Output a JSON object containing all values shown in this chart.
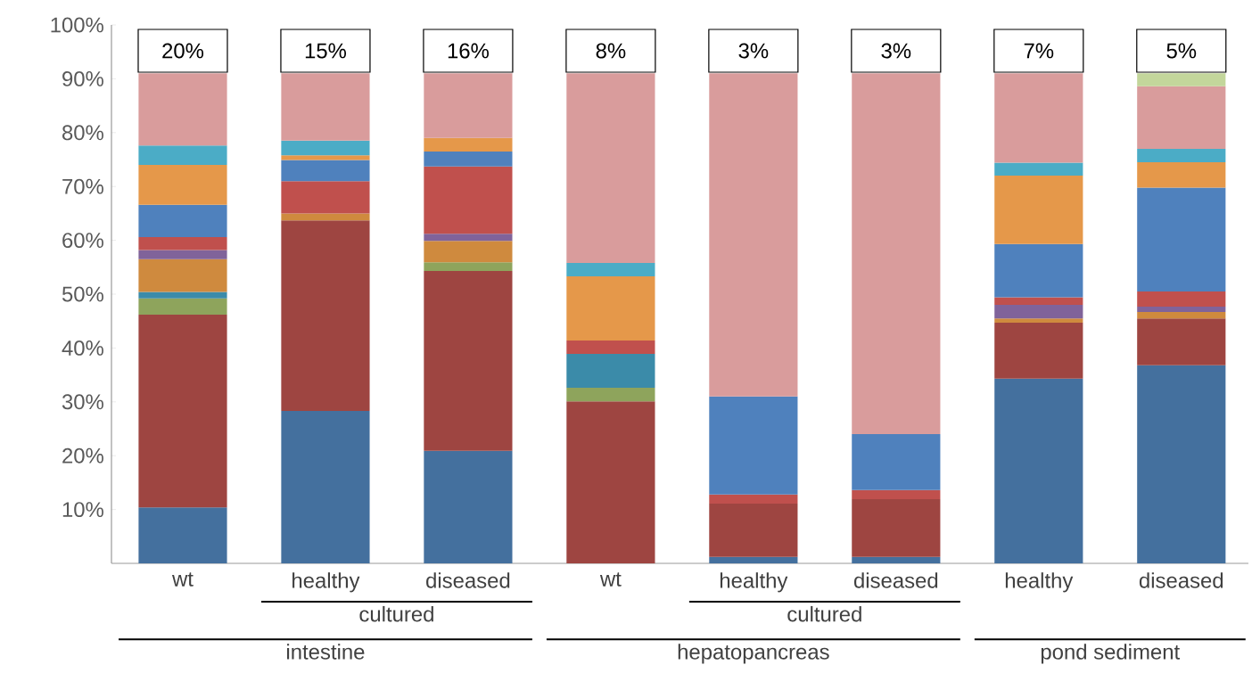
{
  "chart_data": {
    "type": "bar",
    "stacked": true,
    "categories": [
      "wt",
      "healthy",
      "diseased",
      "wt",
      "healthy",
      "diseased",
      "healthy",
      "diseased"
    ],
    "series": [
      {
        "color": "#44709e",
        "values": [
          10.4,
          28.3,
          20.9,
          null,
          1.2,
          1.2,
          34.3,
          36.8
        ]
      },
      {
        "color": "#9e4541",
        "values": [
          35.8,
          35.4,
          33.4,
          30.1,
          9.9,
          10.7,
          10.4,
          8.7
        ]
      },
      {
        "color": "#8ea45c",
        "values": [
          3,
          null,
          1.6,
          2.5,
          null,
          null,
          null,
          null
        ]
      },
      {
        "color": "#3b8ba9",
        "values": [
          1.2,
          null,
          null,
          6.3,
          null,
          null,
          null,
          null
        ]
      },
      {
        "color": "#cf8a3e",
        "values": [
          6.1,
          1.3,
          4,
          null,
          null,
          null,
          0.8,
          1.2
        ]
      },
      {
        "color": "#80639a",
        "values": [
          1.7,
          null,
          1.3,
          null,
          null,
          null,
          2.5,
          1.0
        ]
      },
      {
        "color": "#c0504d",
        "values": [
          2.4,
          6.0,
          12.5,
          2.5,
          1.7,
          1.7,
          1.4,
          2.8
        ]
      },
      {
        "color": "#4f81bd",
        "values": [
          6,
          3.9,
          2.8,
          null,
          18.2,
          10.4,
          9.9,
          19.3
        ]
      },
      {
        "color": "#e5984a",
        "values": [
          7.4,
          0.9,
          2.5,
          11.9,
          null,
          null,
          12.7,
          4.7
        ]
      },
      {
        "color": "#4bacc6",
        "values": [
          3.6,
          2.7,
          null,
          2.5,
          null,
          null,
          2.4,
          2.5
        ]
      },
      {
        "color": "#d99c9c",
        "values": [
          13.4,
          12.5,
          12,
          35.2,
          60,
          67,
          16.6,
          11.6
        ]
      },
      {
        "color": "#c3d69b",
        "values": [
          null,
          null,
          null,
          null,
          null,
          null,
          null,
          2.4
        ]
      }
    ],
    "ylim": [
      0,
      100
    ],
    "yticks": [
      {
        "value": 10,
        "label": "10%"
      },
      {
        "value": 20,
        "label": "20%"
      },
      {
        "value": 30,
        "label": "30%"
      },
      {
        "value": 40,
        "label": "40%"
      },
      {
        "value": 50,
        "label": "50%"
      },
      {
        "value": 60,
        "label": "60%"
      },
      {
        "value": 70,
        "label": "70%"
      },
      {
        "value": 80,
        "label": "80%"
      },
      {
        "value": 90,
        "label": "90%"
      },
      {
        "value": 100,
        "label": "100%"
      }
    ],
    "annotations": [
      "20%",
      "15%",
      "16%",
      "8%",
      "3%",
      "3%",
      "7%",
      "5%",
      "cultured",
      "cultured",
      "intestine",
      "hepatopancreas",
      "pond sediment"
    ]
  }
}
